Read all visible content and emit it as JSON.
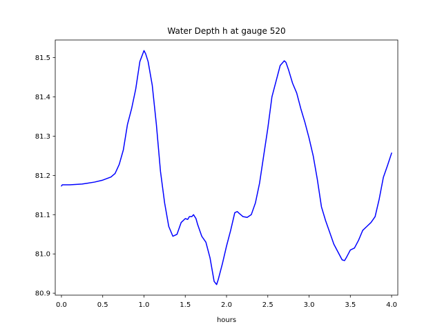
{
  "chart_data": {
    "type": "line",
    "title": "Water Depth h at gauge 520",
    "xlabel": "hours",
    "ylabel": "",
    "xlim": [
      -0.075,
      4.075
    ],
    "ylim": [
      80.895,
      81.545
    ],
    "xticks": [
      0.0,
      0.5,
      1.0,
      1.5,
      2.0,
      2.5,
      3.0,
      3.5,
      4.0
    ],
    "xtick_labels": [
      "0.0",
      "0.5",
      "1.0",
      "1.5",
      "2.0",
      "2.5",
      "3.0",
      "3.5",
      "4.0"
    ],
    "yticks": [
      80.9,
      81.0,
      81.1,
      81.2,
      81.3,
      81.4,
      81.5
    ],
    "ytick_labels": [
      "80.9",
      "81.0",
      "81.1",
      "81.2",
      "81.3",
      "81.4",
      "81.5"
    ],
    "grid": false,
    "series": [
      {
        "color": "#0000ff",
        "x": [
          0.0,
          0.01,
          0.1,
          0.25,
          0.4,
          0.5,
          0.6,
          0.65,
          0.7,
          0.75,
          0.8,
          0.85,
          0.9,
          0.95,
          1.0,
          1.02,
          1.05,
          1.1,
          1.15,
          1.2,
          1.25,
          1.3,
          1.35,
          1.4,
          1.45,
          1.5,
          1.53,
          1.55,
          1.58,
          1.6,
          1.63,
          1.65,
          1.7,
          1.75,
          1.8,
          1.85,
          1.88,
          1.9,
          1.95,
          2.0,
          2.05,
          2.1,
          2.13,
          2.15,
          2.2,
          2.25,
          2.3,
          2.35,
          2.4,
          2.45,
          2.5,
          2.55,
          2.6,
          2.65,
          2.7,
          2.72,
          2.75,
          2.8,
          2.85,
          2.9,
          2.95,
          3.0,
          3.05,
          3.1,
          3.15,
          3.2,
          3.25,
          3.3,
          3.35,
          3.4,
          3.43,
          3.45,
          3.5,
          3.55,
          3.6,
          3.63,
          3.65,
          3.7,
          3.75,
          3.8,
          3.85,
          3.9,
          3.95,
          4.0
        ],
        "y": [
          81.173,
          81.176,
          81.176,
          81.178,
          81.183,
          81.188,
          81.196,
          81.205,
          81.228,
          81.265,
          81.33,
          81.37,
          81.42,
          81.49,
          81.518,
          81.51,
          81.49,
          81.43,
          81.33,
          81.21,
          81.13,
          81.07,
          81.045,
          81.05,
          81.08,
          81.09,
          81.088,
          81.095,
          81.095,
          81.1,
          81.09,
          81.075,
          81.045,
          81.03,
          80.99,
          80.93,
          80.922,
          80.935,
          80.975,
          81.02,
          81.06,
          81.105,
          81.108,
          81.104,
          81.095,
          81.093,
          81.1,
          81.13,
          81.18,
          81.25,
          81.32,
          81.4,
          81.44,
          81.48,
          81.492,
          81.488,
          81.47,
          81.435,
          81.41,
          81.37,
          81.335,
          81.295,
          81.25,
          81.19,
          81.12,
          81.085,
          81.055,
          81.025,
          81.005,
          80.985,
          80.983,
          80.99,
          81.01,
          81.015,
          81.035,
          81.05,
          81.06,
          81.07,
          81.08,
          81.095,
          81.14,
          81.195,
          81.225,
          81.257
        ]
      }
    ]
  }
}
